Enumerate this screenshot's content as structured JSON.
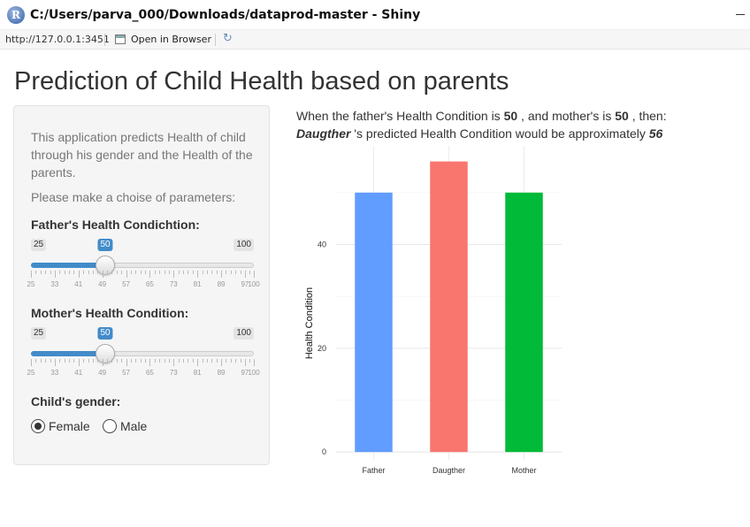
{
  "window": {
    "title": "C:/Users/parva_000/Downloads/dataprod-master - Shiny",
    "app_icon": "R"
  },
  "addressbar": {
    "url": "http://127.0.0.1:3451",
    "open_browser_label": "Open in Browser"
  },
  "page": {
    "title": "Prediction of Child Health based on parents"
  },
  "sidebar": {
    "description": "This application predicts Health of child through his gender and the Health of the parents.",
    "prompt": "Please make a choise of parameters:",
    "father_label": "Father's Health Condichtion:",
    "mother_label": "Mother's Health Condition:",
    "gender_label": "Child's gender:",
    "father_slider": {
      "min": 25,
      "max": 100,
      "value": 50,
      "ticks": [
        "25",
        "33",
        "41",
        "49",
        "57",
        "65",
        "73",
        "81",
        "89",
        "97",
        "100"
      ]
    },
    "mother_slider": {
      "min": 25,
      "max": 100,
      "value": 50,
      "ticks": [
        "25",
        "33",
        "41",
        "49",
        "57",
        "65",
        "73",
        "81",
        "89",
        "97",
        "100"
      ]
    },
    "gender_options": [
      {
        "label": "Female",
        "selected": true
      },
      {
        "label": "Male",
        "selected": false
      }
    ]
  },
  "result": {
    "line1_prefix": "When the father's Health Condition is",
    "father_value": "50",
    "line1_middle": ", and mother's is",
    "mother_value": "50",
    "line1_suffix": ", then:",
    "child": "Daugther",
    "line2_middle": "'s predicted Health Condition would be approximately",
    "predicted_value": "56"
  },
  "chart_data": {
    "type": "bar",
    "categories": [
      "Father",
      "Daugther",
      "Mother"
    ],
    "values": [
      50,
      56,
      50
    ],
    "colors": [
      "#619CFF",
      "#F8766D",
      "#00BA38"
    ],
    "ylabel": "Health Condition",
    "xlabel": "",
    "yticks": [
      0,
      20,
      40
    ],
    "ylim": [
      -1.5,
      59
    ],
    "grid": true
  }
}
